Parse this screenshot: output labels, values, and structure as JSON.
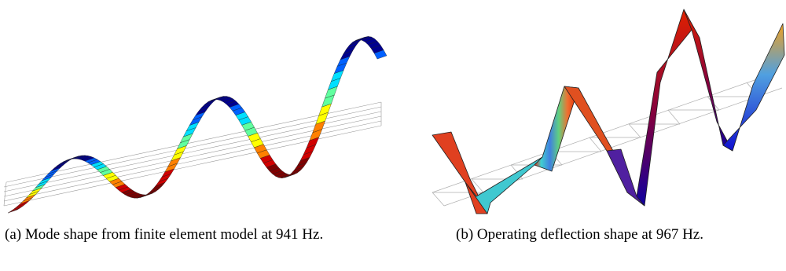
{
  "figure": {
    "subfigures": [
      {
        "id": "a",
        "label": "(a)",
        "caption": "Mode shape from finite element model at 941 Hz.",
        "colormap": [
          "#00008f",
          "#0060ff",
          "#00dfff",
          "#60ff9f",
          "#ffff00",
          "#ff8000",
          "#d00000",
          "#800000"
        ]
      },
      {
        "id": "b",
        "label": "(b)",
        "caption": "Operating deflection shape at 967 Hz.",
        "colormap": [
          "#1a00b0",
          "#3a6fe0",
          "#40d8d0",
          "#f08040",
          "#e02000",
          "#900030"
        ]
      }
    ]
  }
}
